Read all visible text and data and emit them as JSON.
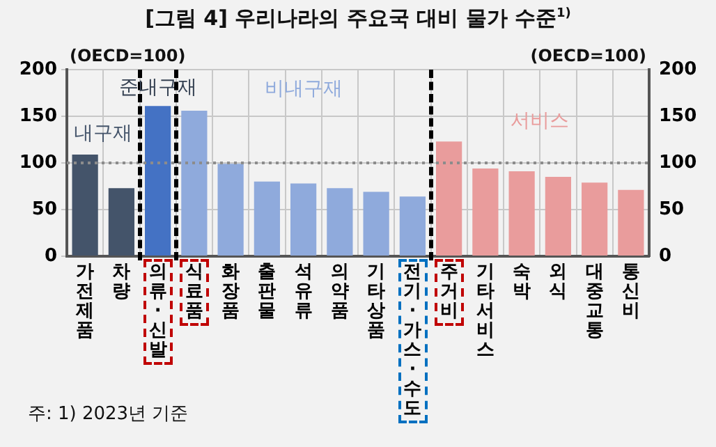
{
  "chart_data": {
    "type": "bar",
    "title": "[그림 4] 우리나라의 주요국 대비 물가 수준$^{1)}$",
    "ylabel": "(OECD=100)",
    "y2label": "(OECD=100)",
    "categories": [
      "가전제품",
      "차량",
      "의류·신발",
      "식료품",
      "화장품",
      "출판물",
      "석유류",
      "의약품",
      "기타상품",
      "전기·가스·수도",
      "주거비",
      "기타서비스",
      "숙박",
      "외식",
      "대중교통",
      "통신비"
    ],
    "values": [
      109,
      73,
      161,
      156,
      99,
      80,
      78,
      73,
      69,
      64,
      123,
      94,
      91,
      85,
      79,
      71
    ],
    "colors": [
      "#44546a",
      "#44546a",
      "#4472c4",
      "#8faadc",
      "#8faadc",
      "#8faadc",
      "#8faadc",
      "#8faadc",
      "#8faadc",
      "#8faadc",
      "#e99c9c",
      "#e99c9c",
      "#e99c9c",
      "#e99c9c",
      "#e99c9c",
      "#e99c9c"
    ],
    "ylim": [
      0,
      200
    ],
    "yticks": [
      0,
      50,
      100,
      150,
      200
    ],
    "y2lim": [
      0,
      200
    ],
    "y2ticks": [
      0,
      50,
      100,
      150,
      200
    ],
    "grid": true,
    "legend": false,
    "ref_lines": [
      {
        "axis": "y",
        "value": 100,
        "color": "#8c8c8c",
        "line_style": "dotted"
      }
    ],
    "annotations": [
      "내구재",
      "준내구재",
      "비내구재",
      "서비스",
      "주: 1) 2023년 기준"
    ]
  }
}
